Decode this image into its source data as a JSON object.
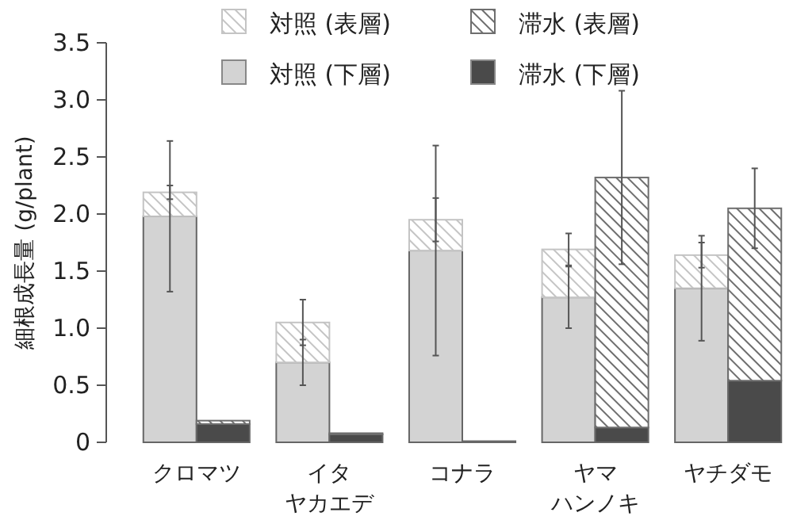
{
  "chart_data": {
    "type": "bar",
    "stacked": true,
    "ylabel": "細根成長量 (g/plant)",
    "categories": [
      null,
      null,
      "クロマツ",
      null,
      null,
      null,
      null,
      "イタヤカエデ",
      null,
      null,
      null,
      null,
      "コナラ",
      null,
      null,
      null,
      null,
      "ヤマハンノキ",
      null,
      null,
      null,
      null,
      "ヤチダモ",
      null,
      null
    ],
    "ylim": [
      0,
      3.5
    ],
    "yticks": [
      {
        "value": 0,
        "label": "0"
      },
      {
        "value": 0.5,
        "label": "0.5"
      },
      {
        "value": 1,
        "label": "1.0"
      },
      {
        "value": 1.5,
        "label": "1.5"
      },
      {
        "value": 2,
        "label": "2.0"
      },
      {
        "value": 2.5,
        "label": "2.5"
      },
      {
        "value": 3,
        "label": "3.0"
      },
      {
        "value": 3.5,
        "label": "3.5"
      }
    ],
    "legend": "top",
    "series": [
      {
        "name": "対照 (下層)",
        "color": "#d3d3d3",
        "values": [
          null,
          1.98,
          null,
          null,
          null,
          null,
          0.7,
          null,
          null,
          null,
          null,
          1.68,
          null,
          null,
          null,
          null,
          1.27,
          null,
          null,
          null,
          null,
          1.35,
          null,
          null,
          null
        ],
        "errors": [
          null,
          0.66,
          null,
          null,
          null,
          null,
          0.2,
          null,
          null,
          null,
          null,
          0.92,
          null,
          null,
          null,
          null,
          0.27,
          null,
          null,
          null,
          null,
          0.46,
          null,
          null,
          null
        ]
      },
      {
        "name": "対照 (表層)",
        "color": "#c4c4c4",
        "values": [
          null,
          0.21,
          null,
          null,
          null,
          null,
          0.35,
          null,
          null,
          null,
          null,
          0.27,
          null,
          null,
          null,
          null,
          0.42,
          null,
          null,
          null,
          null,
          0.29,
          null,
          null,
          null
        ],
        "errors": [
          null,
          0.06,
          null,
          null,
          null,
          null,
          0.2,
          null,
          null,
          null,
          null,
          0.19,
          null,
          null,
          null,
          null,
          0.14,
          null,
          null,
          null,
          null,
          0.11,
          null,
          null,
          null
        ]
      },
      {
        "name": "滞水 (下層)",
        "color": "#4a4a4a",
        "values": [
          null,
          null,
          null,
          0.16,
          null,
          null,
          null,
          null,
          0.07,
          null,
          null,
          null,
          null,
          0.01,
          null,
          null,
          null,
          null,
          0.13,
          null,
          null,
          null,
          null,
          0.54,
          null
        ]
      },
      {
        "name": "滞水 (表層)",
        "color": "#6e6e6e",
        "values": [
          null,
          null,
          null,
          0.03,
          null,
          null,
          null,
          null,
          0.01,
          null,
          null,
          null,
          null,
          0,
          null,
          null,
          null,
          null,
          2.19,
          null,
          null,
          null,
          null,
          1.51,
          null
        ],
        "errors": [
          null,
          null,
          null,
          null,
          null,
          null,
          null,
          null,
          null,
          null,
          null,
          null,
          null,
          null,
          null,
          null,
          null,
          null,
          0.76,
          null,
          null,
          null,
          null,
          0.35,
          null
        ]
      }
    ]
  }
}
